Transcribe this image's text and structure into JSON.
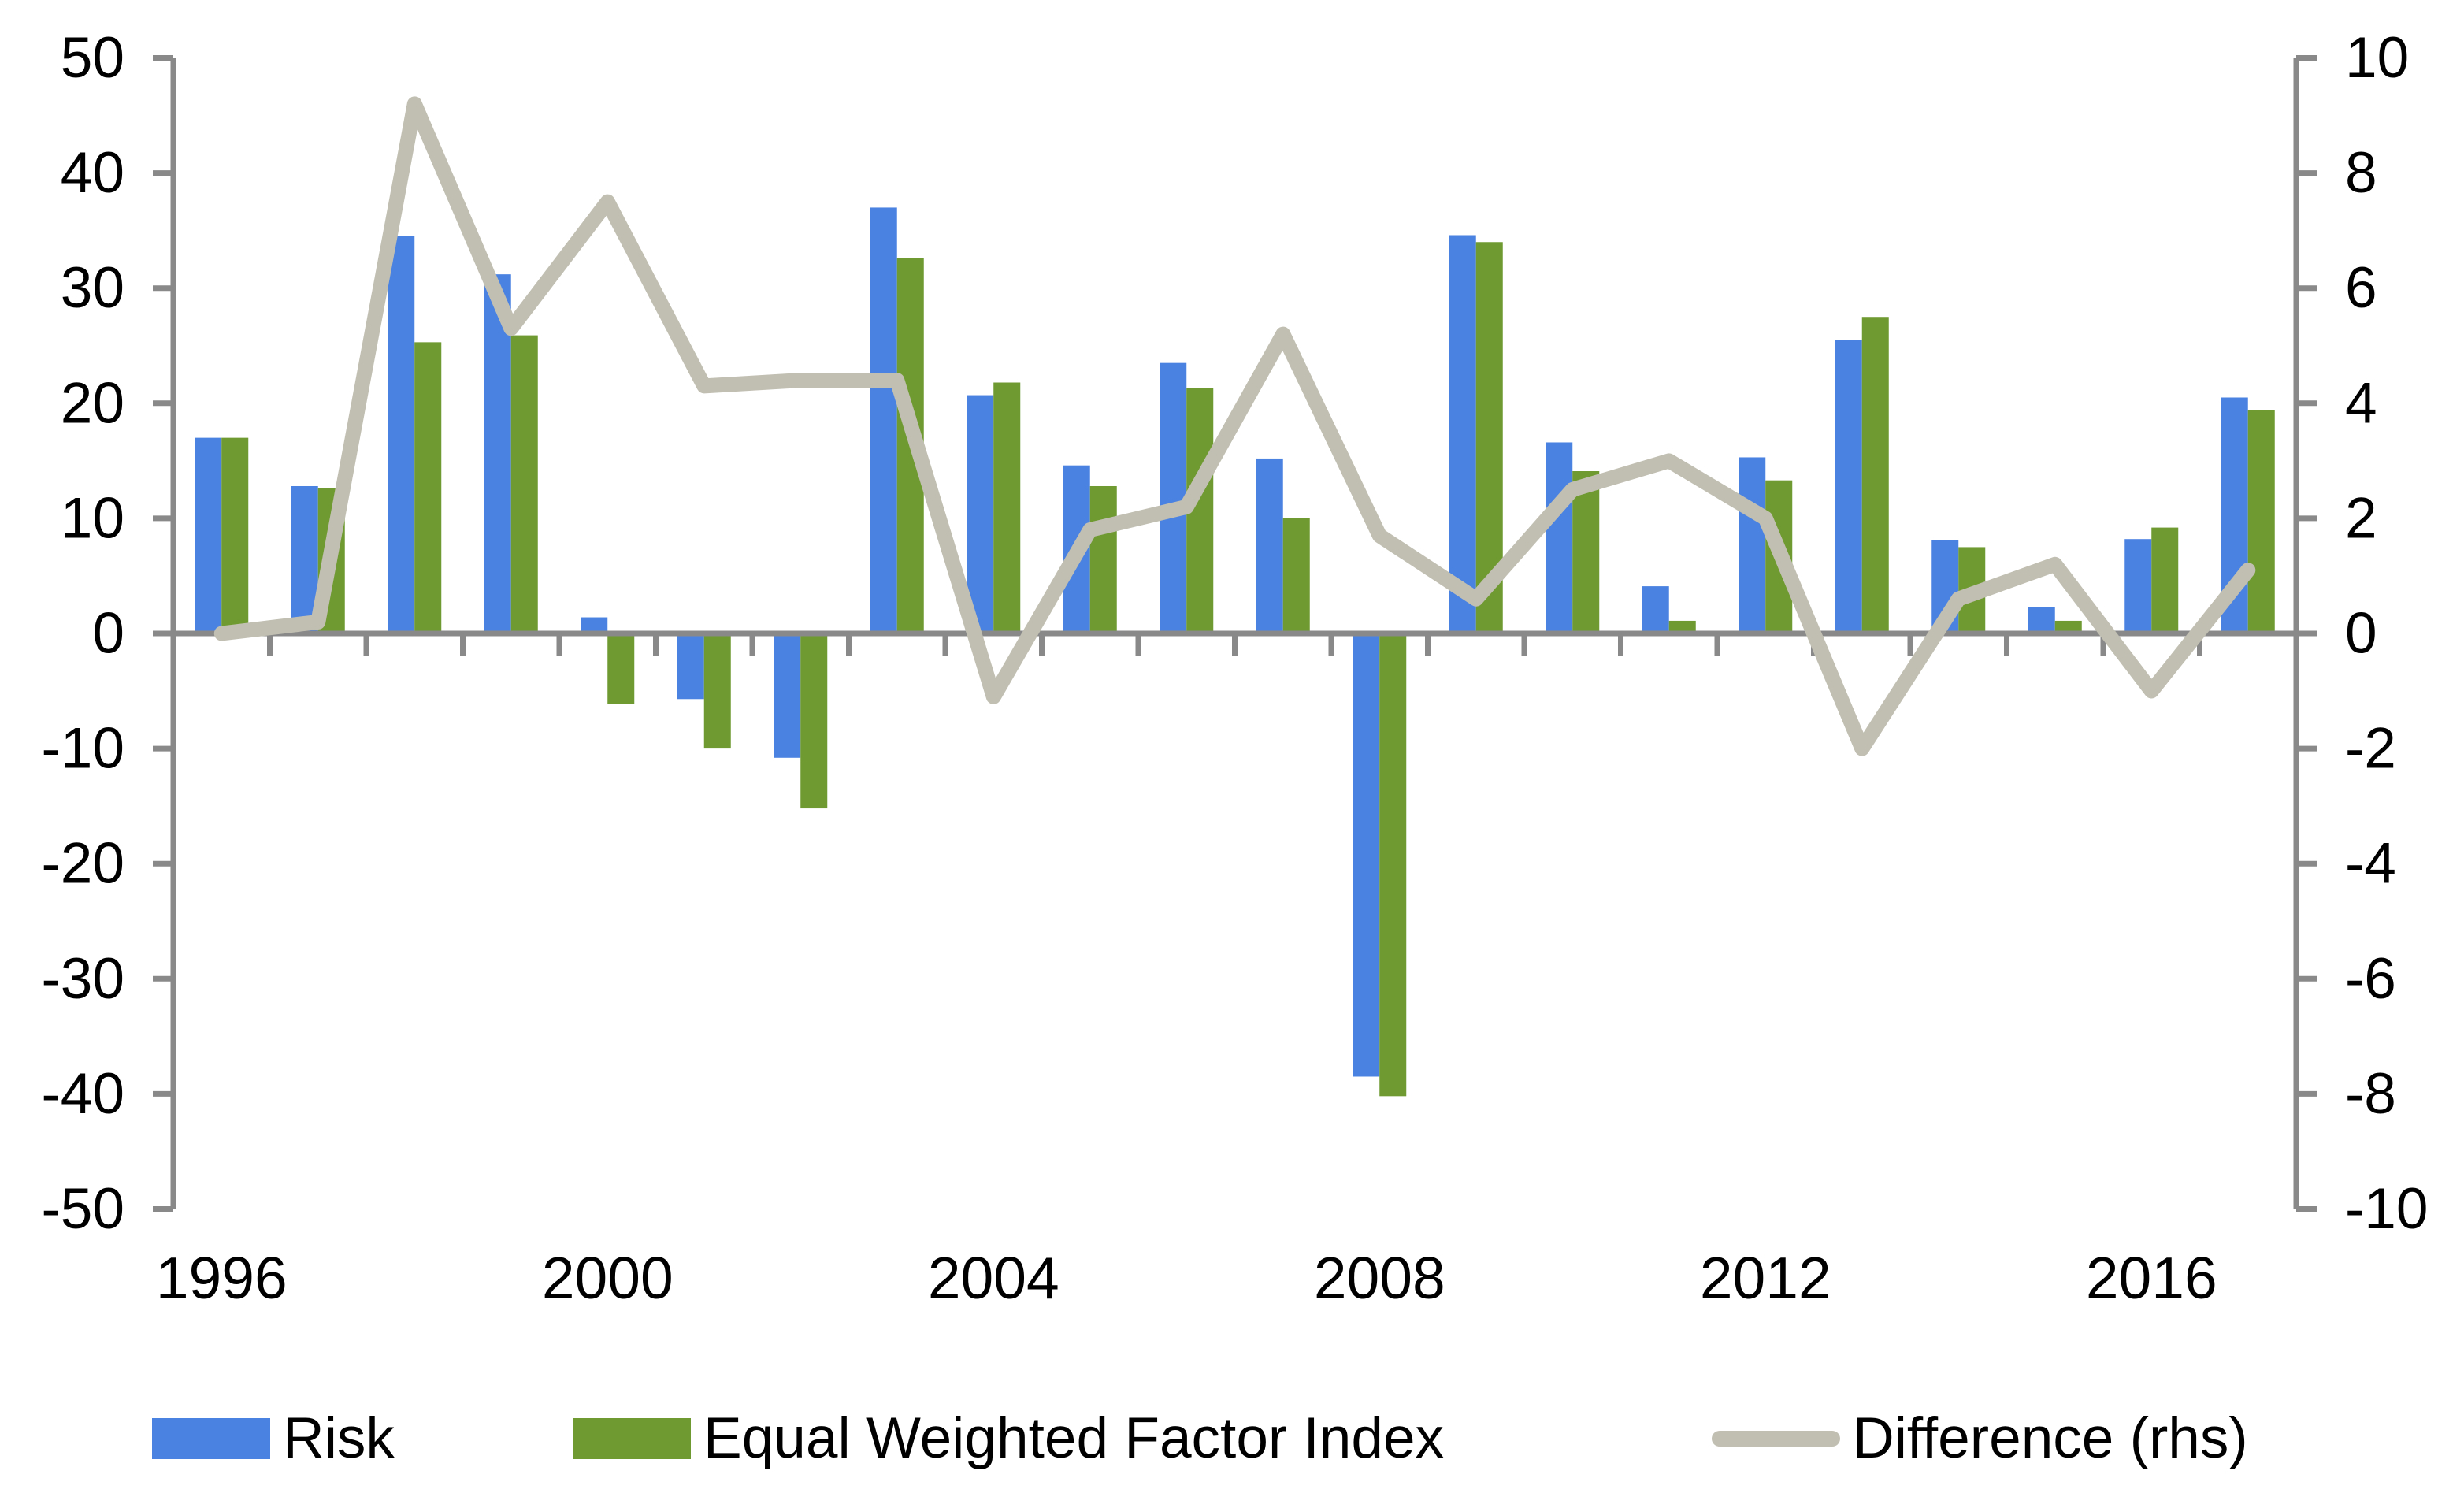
{
  "chart_data": {
    "type": "bar",
    "title": "",
    "categories": [
      1996,
      1997,
      1998,
      1999,
      2000,
      2001,
      2002,
      2003,
      2004,
      2005,
      2006,
      2007,
      2008,
      2009,
      2010,
      2011,
      2012,
      2013,
      2014,
      2015,
      2016,
      2017
    ],
    "series": [
      {
        "name": "Risk",
        "type": "bar",
        "axis": "left",
        "color": "#4a82e2",
        "values": [
          17.0,
          12.8,
          34.5,
          31.2,
          1.4,
          -5.7,
          -10.8,
          37.0,
          20.7,
          14.6,
          23.5,
          15.2,
          -38.5,
          34.6,
          16.6,
          4.1,
          15.3,
          25.5,
          8.1,
          2.3,
          8.2,
          20.5
        ]
      },
      {
        "name": "Equal Weighted Factor Index",
        "type": "bar",
        "axis": "left",
        "color": "#6f9a31",
        "values": [
          17.0,
          12.6,
          25.3,
          25.9,
          -6.1,
          -10.0,
          -15.2,
          32.6,
          21.8,
          12.8,
          21.3,
          10.0,
          -40.2,
          34.0,
          14.1,
          1.1,
          13.3,
          27.5,
          7.5,
          1.1,
          9.2,
          19.4
        ]
      },
      {
        "name": "Difference (rhs)",
        "type": "line",
        "axis": "right",
        "color": "#c1bfb2",
        "values": [
          0.0,
          0.2,
          9.2,
          5.3,
          7.5,
          4.3,
          4.4,
          4.4,
          -1.1,
          1.8,
          2.2,
          5.2,
          1.7,
          0.6,
          2.5,
          3.0,
          2.0,
          -2.0,
          0.6,
          1.2,
          -1.0,
          1.1
        ]
      }
    ],
    "left_axis": {
      "min": -50,
      "max": 50,
      "tick_step": 10,
      "tick_labels": [
        "50",
        "40",
        "30",
        "20",
        "10",
        "0",
        "-10",
        "-20",
        "-30",
        "-40",
        "-50"
      ]
    },
    "right_axis": {
      "min": -10,
      "max": 10,
      "tick_step": 2,
      "tick_labels": [
        "10",
        "8",
        "6",
        "4",
        "2",
        "0",
        "-2",
        "-4",
        "-6",
        "-8",
        "-10"
      ]
    },
    "x_axis": {
      "labels": [
        "1996",
        "2000",
        "2004",
        "2008",
        "2012",
        "2016"
      ],
      "label_years": [
        1996,
        2000,
        2004,
        2008,
        2012,
        2016
      ]
    },
    "grid": false,
    "legend_position": "bottom"
  },
  "legend": {
    "items": [
      {
        "label": "Risk",
        "marker": "rect",
        "color": "#4a82e2"
      },
      {
        "label": "Equal Weighted Factor Index",
        "marker": "rect",
        "color": "#6f9a31"
      },
      {
        "label": "Difference (rhs)",
        "marker": "line",
        "color": "#c1bfb2"
      }
    ]
  },
  "colors": {
    "background": "#ffffff",
    "axis": "#898989",
    "text": "#000000",
    "risk_blue": "#4a82e2",
    "index_green": "#6f9a31",
    "difference_gray": "#c1bfb2"
  }
}
